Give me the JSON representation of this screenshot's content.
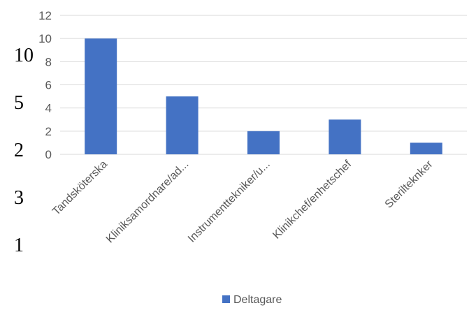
{
  "chart_data": {
    "type": "bar",
    "categories": [
      "Tandsköterska",
      "Kliniksamordnare/ad...",
      "Instrumenttekniker/u...",
      "Klinikchef/enhetschef",
      "Sterilteknker"
    ],
    "series": [
      {
        "name": "Deltagare",
        "values": [
          10,
          5,
          2,
          3,
          1
        ],
        "color": "#4472c4"
      }
    ],
    "ylim": [
      0,
      12
    ],
    "yticks": [
      0,
      2,
      4,
      6,
      8,
      10,
      12
    ],
    "grid": true,
    "legend_position": "bottom"
  },
  "side_numbers": [
    "10",
    "5",
    "2",
    "3",
    "1"
  ]
}
